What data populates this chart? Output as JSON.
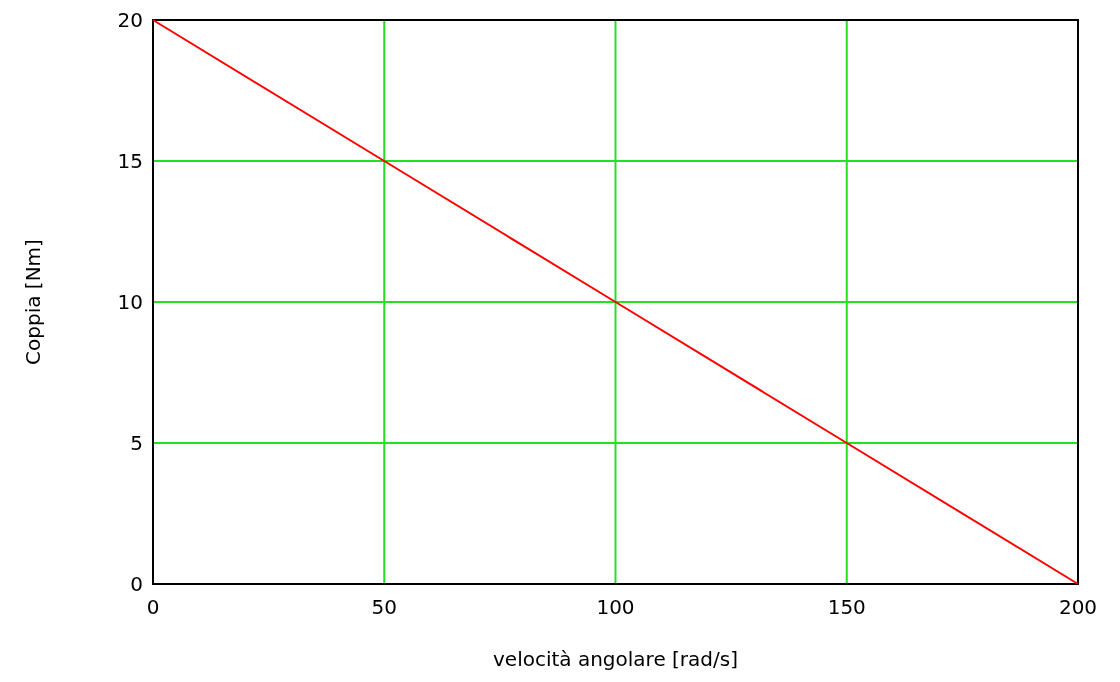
{
  "chart_data": {
    "type": "line",
    "xlabel": "velocità angolare [rad/s]",
    "ylabel": "Coppia [Nm]",
    "x": [
      0,
      50,
      100,
      150,
      200
    ],
    "series": [
      {
        "color": "#ff0000",
        "values": [
          20,
          15,
          10,
          5,
          0
        ]
      }
    ],
    "xlim": [
      0,
      200
    ],
    "xticks": [
      0,
      50,
      100,
      150,
      200
    ],
    "ylim": [
      0,
      20
    ],
    "yticks": [
      0,
      5,
      10,
      15,
      20
    ],
    "grid": true,
    "marker": "none",
    "line_style": "solid"
  }
}
